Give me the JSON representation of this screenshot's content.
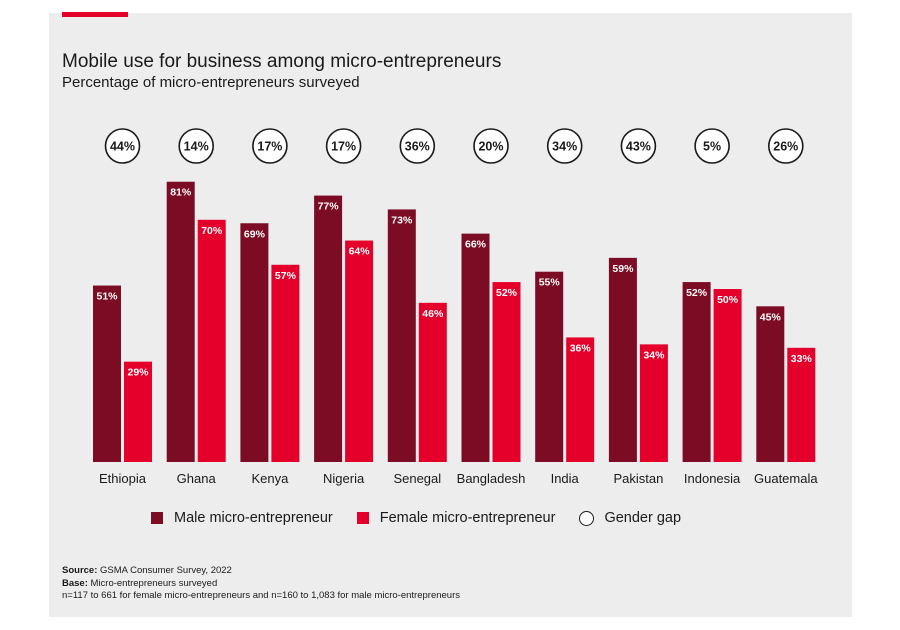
{
  "header": {
    "title": "Mobile use for business among micro-entrepreneurs",
    "subtitle": "Percentage of micro-entrepreneurs surveyed"
  },
  "chart_data": {
    "type": "bar",
    "categories": [
      "Ethiopia",
      "Ghana",
      "Kenya",
      "Nigeria",
      "Senegal",
      "Bangladesh",
      "India",
      "Pakistan",
      "Indonesia",
      "Guatemala"
    ],
    "series": [
      {
        "name": "Male micro-entrepreneur",
        "color": "#7b0c23",
        "values": [
          51,
          81,
          69,
          77,
          73,
          66,
          55,
          59,
          52,
          45
        ],
        "labels": [
          "51%",
          "81%",
          "69%",
          "77%",
          "73%",
          "66%",
          "55%",
          "59%",
          "52%",
          "45%"
        ]
      },
      {
        "name": "Female micro-entrepreneur",
        "color": "#e4002b",
        "values": [
          29,
          70,
          57,
          64,
          46,
          52,
          36,
          34,
          50,
          33
        ],
        "labels": [
          "29%",
          "70%",
          "57%",
          "64%",
          "46%",
          "52%",
          "36%",
          "34%",
          "50%",
          "33%"
        ]
      }
    ],
    "gender_gap": {
      "name": "Gender gap",
      "values": [
        44,
        14,
        17,
        17,
        36,
        20,
        34,
        43,
        5,
        26
      ],
      "labels": [
        "44%",
        "14%",
        "17%",
        "17%",
        "36%",
        "20%",
        "34%",
        "43%",
        "5%",
        "26%"
      ]
    },
    "ylim": [
      0,
      100
    ],
    "grid": false,
    "legend": "bottom"
  },
  "notes": {
    "source_label": "Source:",
    "source_text": "GSMA Consumer Survey, 2022",
    "base_label": "Base:",
    "base_text": "Micro-entrepreneurs surveyed",
    "sample_text": "n=117 to 661 for female micro-entrepreneurs and n=160 to 1,083 for male micro-entrepreneurs"
  },
  "colors": {
    "accent": "#e4002b",
    "male": "#7b0c23",
    "female": "#e4002b",
    "panel": "#ededed"
  }
}
